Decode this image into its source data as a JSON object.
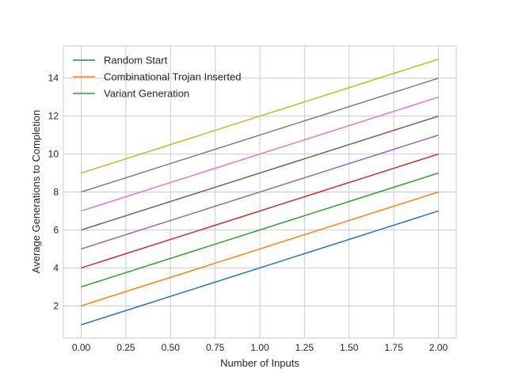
{
  "chart_data": {
    "type": "line",
    "title": "",
    "xlabel": "Number of Inputs",
    "ylabel": "Average Generations to Completion",
    "xlim": [
      -0.1,
      2.1
    ],
    "ylim": [
      0.3,
      15.7
    ],
    "x": [
      0,
      2
    ],
    "xticks": [
      0.0,
      0.25,
      0.5,
      0.75,
      1.0,
      1.25,
      1.5,
      1.75,
      2.0
    ],
    "xtick_labels": [
      "0.00",
      "0.25",
      "0.50",
      "0.75",
      "1.00",
      "1.25",
      "1.50",
      "1.75",
      "2.00"
    ],
    "yticks": [
      2,
      4,
      6,
      8,
      10,
      12,
      14
    ],
    "ytick_labels": [
      "2",
      "4",
      "6",
      "8",
      "10",
      "12",
      "14"
    ],
    "grid": true,
    "legend_position": "upper-left",
    "series": [
      {
        "name": "Random Start",
        "color": "#1f77b4",
        "values": [
          1,
          7
        ]
      },
      {
        "name": "Combinational Trojan Inserted",
        "color": "#ff7f0e",
        "values": [
          2,
          8
        ]
      },
      {
        "name": "Variant Generation",
        "color": "#2ca02c",
        "values": [
          3,
          9
        ]
      },
      {
        "color": "#d62728",
        "values": [
          4,
          10
        ]
      },
      {
        "color": "#9467bd",
        "values": [
          5,
          11
        ]
      },
      {
        "color": "#8c564b",
        "values": [
          6,
          12
        ]
      },
      {
        "color": "#e377c2",
        "values": [
          7,
          13
        ]
      },
      {
        "color": "#7f7f7f",
        "values": [
          8,
          14
        ]
      },
      {
        "color": "#bcbd22",
        "values": [
          9,
          15
        ]
      }
    ]
  }
}
